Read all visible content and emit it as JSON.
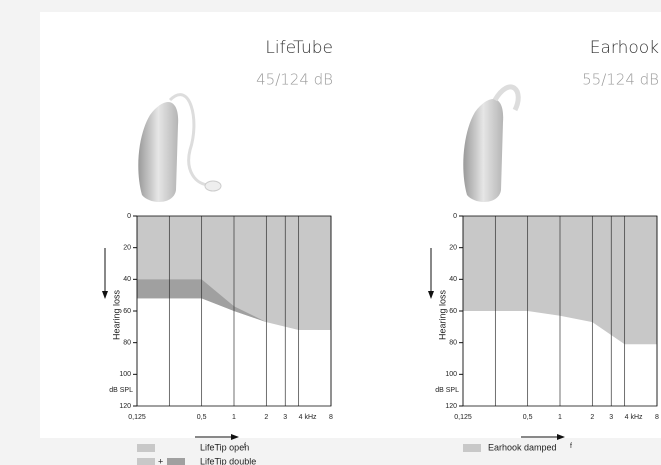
{
  "chart_data": [
    {
      "type": "area",
      "title": "LifeTube",
      "subtitle": "45/124 dB",
      "ylabel": "Hearing loss",
      "y_unit": "dB SPL",
      "xlabel": "f",
      "log_x": true,
      "y_inverted": true,
      "grid": true,
      "xlim": [
        0.125,
        8
      ],
      "ylim": [
        0,
        120
      ],
      "xticks": [
        {
          "value": 0.125,
          "label": "0,125"
        },
        {
          "value": 0.5,
          "label": "0,5"
        },
        1,
        2,
        3,
        {
          "value": 4,
          "label": "4 kHz"
        },
        8
      ],
      "yticks": [
        0,
        20,
        40,
        60,
        80,
        100,
        120
      ],
      "x": [
        0.125,
        0.5,
        1,
        2,
        4,
        8
      ],
      "legend_plus": "+",
      "series": [
        {
          "name": "LifeTip open",
          "color": "#c8c8c8",
          "values": [
            52,
            52,
            60,
            67,
            72,
            72
          ]
        },
        {
          "name": "LifeTip double",
          "color": "#a0a0a0",
          "values": [
            40,
            40,
            57,
            67,
            72,
            72
          ]
        }
      ]
    },
    {
      "type": "area",
      "title": "Earhook",
      "subtitle": "55/124 dB",
      "ylabel": "Hearing loss",
      "y_unit": "dB SPL",
      "xlabel": "f",
      "log_x": true,
      "y_inverted": true,
      "grid": true,
      "xlim": [
        0.125,
        8
      ],
      "ylim": [
        0,
        120
      ],
      "xticks": [
        {
          "value": 0.125,
          "label": "0,125"
        },
        {
          "value": 0.5,
          "label": "0,5"
        },
        1,
        2,
        3,
        {
          "value": 4,
          "label": "4 kHz"
        },
        8
      ],
      "yticks": [
        0,
        20,
        40,
        60,
        80,
        100,
        120
      ],
      "x": [
        0.125,
        0.5,
        1,
        2,
        4,
        8
      ],
      "series": [
        {
          "name": "Earhook damped",
          "color": "#c8c8c8",
          "values": [
            60,
            60,
            63,
            67,
            81,
            81
          ]
        }
      ]
    }
  ]
}
